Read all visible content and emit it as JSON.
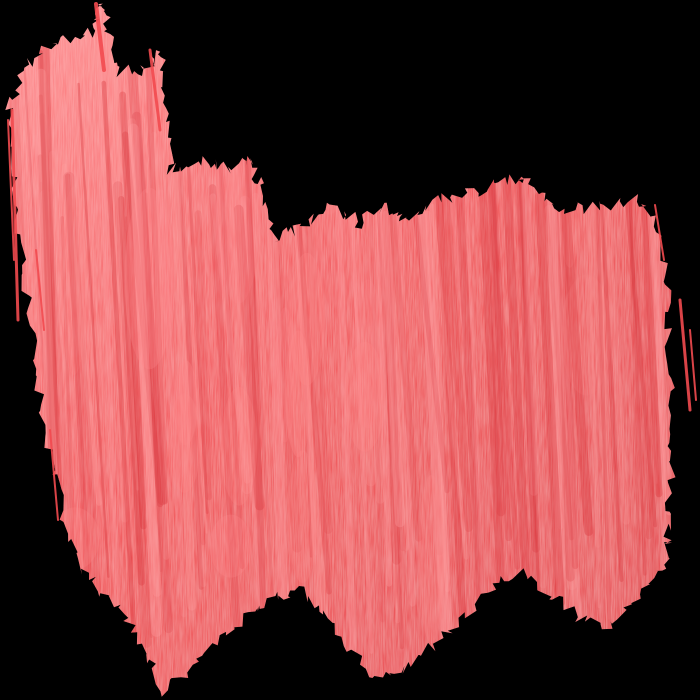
{
  "artwork": {
    "subject": "red-watercolor-brush-stroke",
    "colors": {
      "background": "#000000",
      "paint_base": "#f24a4f",
      "paint_light": "#ff8a8c",
      "paint_dark": "#e23a40",
      "streak_light": "#ff9ea0",
      "streak_dark": "#d8343a"
    }
  }
}
